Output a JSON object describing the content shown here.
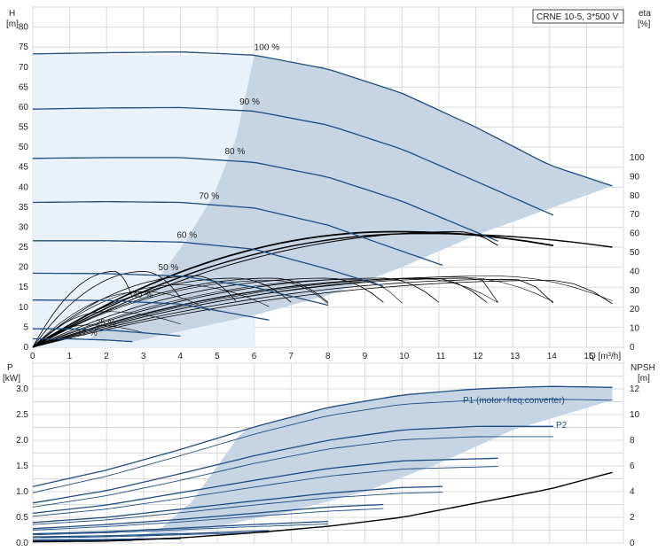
{
  "chart_data": [
    {
      "type": "line",
      "panel": "head",
      "model_label": "CRNE 10-5, 3*500 V",
      "y_label_line1": "H",
      "y_label_line2": "[m]",
      "y2_label_line1": "eta",
      "y2_label_line2": "[%]",
      "x_label": "Q [m³/h]",
      "xlim": [
        0,
        16
      ],
      "ylim": [
        0,
        85
      ],
      "y2lim": [
        0,
        100
      ],
      "x_ticks": [
        "0",
        "1",
        "2",
        "3",
        "4",
        "5",
        "6",
        "7",
        "8",
        "9",
        "10",
        "11",
        "12",
        "13",
        "14",
        "15"
      ],
      "y_ticks": [
        "0",
        "5",
        "10",
        "15",
        "20",
        "25",
        "30",
        "35",
        "40",
        "45",
        "50",
        "55",
        "60",
        "65",
        "70",
        "75",
        "80"
      ],
      "y2_ticks": [
        "0",
        "10",
        "20",
        "30",
        "40",
        "50",
        "60",
        "70",
        "80",
        "90",
        "100"
      ],
      "grid": true,
      "colors": {
        "curve": "#1e4d83",
        "envelope": "#c5d5e4",
        "envelope_light": "#e9f2fb",
        "eff": "#000000"
      },
      "series": [
        {
          "label": "100 %",
          "x": [
            0,
            2,
            4,
            6,
            8,
            10,
            12,
            14,
            15.7
          ],
          "y": [
            73.3,
            73.6,
            73.8,
            73.0,
            69.5,
            63.5,
            55.0,
            45.5,
            40.3
          ]
        },
        {
          "label": "90 %",
          "x": [
            0,
            2,
            4,
            6,
            8,
            10,
            12,
            14.1
          ],
          "y": [
            59.5,
            59.8,
            59.9,
            59.0,
            55.5,
            49.5,
            41.5,
            33.0
          ]
        },
        {
          "label": "80 %",
          "x": [
            0,
            2,
            4,
            6,
            8,
            10,
            12.6
          ],
          "y": [
            47.2,
            47.4,
            47.4,
            46.2,
            42.5,
            36.5,
            26.5
          ]
        },
        {
          "label": "70 %",
          "x": [
            0,
            2,
            4,
            6,
            8,
            10,
            11.1
          ],
          "y": [
            36.2,
            36.4,
            36.2,
            34.8,
            30.5,
            24.0,
            20.5
          ]
        },
        {
          "label": "60 %",
          "x": [
            0,
            2,
            4,
            6,
            8,
            9.5
          ],
          "y": [
            26.6,
            26.6,
            26.3,
            24.5,
            19.5,
            15.2
          ]
        },
        {
          "label": "50 %",
          "x": [
            0,
            2,
            4,
            6,
            8
          ],
          "y": [
            18.5,
            18.4,
            17.8,
            15.0,
            10.5
          ]
        },
        {
          "label": "40 %",
          "x": [
            0,
            2,
            4,
            6.4
          ],
          "y": [
            11.8,
            11.7,
            10.8,
            6.8
          ]
        },
        {
          "label": "25 %",
          "x": [
            0,
            1,
            2,
            3,
            4
          ],
          "y": [
            4.6,
            4.6,
            4.3,
            3.6,
            2.8
          ]
        },
        {
          "label": "17 %",
          "x": [
            0,
            1,
            2,
            2.7
          ],
          "y": [
            2.1,
            2.1,
            1.8,
            1.4
          ]
        }
      ]
    },
    {
      "type": "line",
      "panel": "power",
      "y_label_line1": "P",
      "y_label_line2": "[kW]",
      "y2_label_line1": "NPSH",
      "y2_label_line2": "[m]",
      "xlim": [
        0,
        16
      ],
      "ylim": [
        0,
        3.5
      ],
      "y2lim": [
        0,
        14
      ],
      "y_ticks": [
        "0.0",
        "0.5",
        "1.0",
        "1.5",
        "2.0",
        "2.5",
        "3.0"
      ],
      "y2_ticks": [
        "0",
        "2",
        "4",
        "6",
        "8",
        "10",
        "12"
      ],
      "grid": true,
      "legend_p1": "P1 (motor+freq.converter)",
      "legend_p2": "P2",
      "series": [
        {
          "name": "P1",
          "x": [
            0,
            2,
            4,
            6,
            8,
            10,
            12,
            14,
            15.7
          ],
          "y": [
            1.1,
            1.42,
            1.82,
            2.26,
            2.64,
            2.88,
            3.0,
            3.05,
            3.03
          ]
        },
        {
          "name": "P2",
          "x": [
            0,
            2,
            4,
            6,
            8,
            10,
            12,
            14,
            15.7
          ],
          "y": [
            0.98,
            1.3,
            1.7,
            2.12,
            2.48,
            2.7,
            2.78,
            2.8,
            2.78
          ]
        },
        {
          "x": [
            0,
            2,
            4,
            6,
            8,
            10,
            12,
            14.1
          ],
          "y": [
            0.78,
            1.02,
            1.35,
            1.7,
            2.0,
            2.2,
            2.27,
            2.27
          ]
        },
        {
          "x": [
            0,
            2,
            4,
            6,
            8,
            10,
            12,
            14.1
          ],
          "y": [
            0.7,
            0.92,
            1.22,
            1.55,
            1.83,
            2.01,
            2.07,
            2.07
          ]
        },
        {
          "x": [
            0,
            2,
            4,
            6,
            8,
            10,
            12.6
          ],
          "y": [
            0.58,
            0.74,
            0.98,
            1.22,
            1.45,
            1.6,
            1.65
          ]
        },
        {
          "x": [
            0,
            2,
            4,
            6,
            8,
            10,
            12.6
          ],
          "y": [
            0.52,
            0.66,
            0.87,
            1.09,
            1.3,
            1.44,
            1.49
          ]
        },
        {
          "x": [
            0,
            2,
            4,
            6,
            8,
            10,
            11.1
          ],
          "y": [
            0.4,
            0.5,
            0.66,
            0.82,
            0.97,
            1.08,
            1.1
          ]
        },
        {
          "x": [
            0,
            2,
            4,
            6,
            8,
            10,
            11.1
          ],
          "y": [
            0.36,
            0.45,
            0.59,
            0.74,
            0.88,
            0.97,
            0.99
          ]
        },
        {
          "x": [
            0,
            2,
            4,
            6,
            8,
            9.5
          ],
          "y": [
            0.28,
            0.36,
            0.46,
            0.58,
            0.7,
            0.75
          ]
        },
        {
          "x": [
            0,
            2,
            4,
            6,
            8,
            9.5
          ],
          "y": [
            0.25,
            0.32,
            0.41,
            0.52,
            0.62,
            0.67
          ]
        },
        {
          "x": [
            0,
            2,
            4,
            6,
            8
          ],
          "y": [
            0.18,
            0.22,
            0.29,
            0.36,
            0.42
          ]
        },
        {
          "x": [
            0,
            2,
            4,
            6,
            8
          ],
          "y": [
            0.16,
            0.2,
            0.26,
            0.32,
            0.37
          ]
        },
        {
          "x": [
            0,
            2,
            4,
            6.4
          ],
          "y": [
            0.12,
            0.14,
            0.18,
            0.24
          ]
        },
        {
          "x": [
            0,
            2,
            4,
            6.4
          ],
          "y": [
            0.1,
            0.12,
            0.16,
            0.21
          ]
        },
        {
          "x": [
            0,
            2,
            4
          ],
          "y": [
            0.06,
            0.07,
            0.09
          ]
        },
        {
          "x": [
            0,
            2,
            4
          ],
          "y": [
            0.05,
            0.06,
            0.08
          ]
        },
        {
          "x": [
            0,
            1.5,
            2.7
          ],
          "y": [
            0.04,
            0.045,
            0.05
          ]
        }
      ],
      "npsh": {
        "x": [
          0,
          2,
          4,
          6,
          8,
          10,
          12,
          14,
          15.7
        ],
        "y": [
          0.1,
          0.15,
          0.4,
          0.8,
          1.3,
          2.0,
          3.1,
          4.2,
          5.5
        ]
      }
    }
  ]
}
